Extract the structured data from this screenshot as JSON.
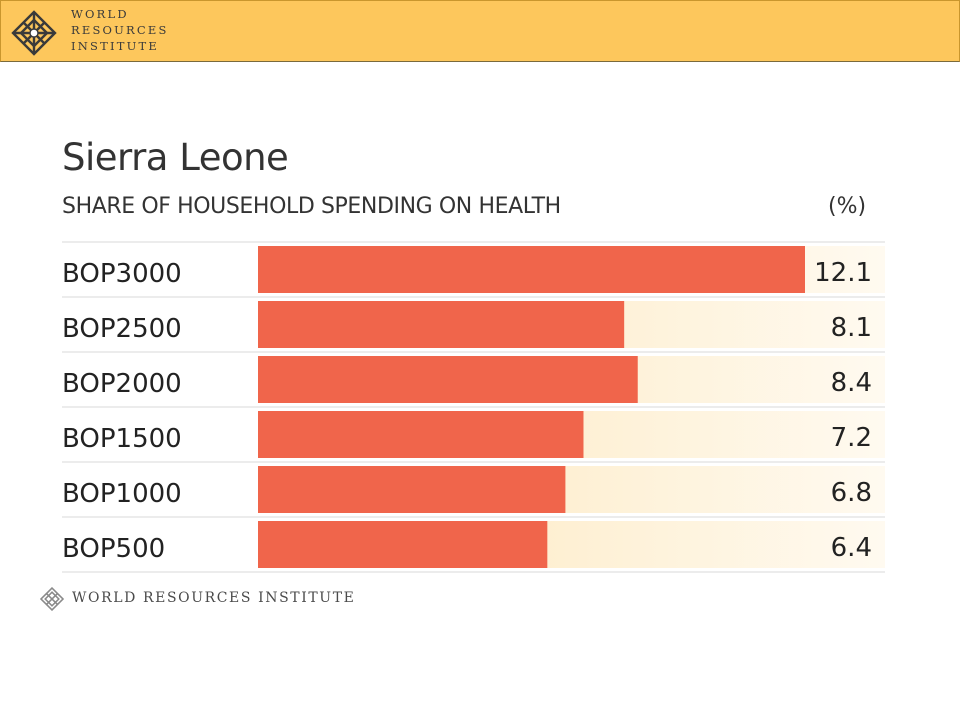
{
  "header": {
    "org_line1": "WORLD",
    "org_line2": "RESOURCES",
    "org_line3": "INSTITUTE",
    "logo_icon": "wri-knot-icon"
  },
  "footer": {
    "org_name": "WORLD RESOURCES INSTITUTE",
    "logo_icon": "wri-knot-icon"
  },
  "colors": {
    "banner": "#fdc75c",
    "bar": "#f0654b",
    "track_start": "#fde6b8",
    "track_end": "#fffaf0"
  },
  "chart_data": {
    "type": "bar",
    "orientation": "horizontal",
    "title": "Sierra Leone",
    "subtitle": "SHARE OF HOUSEHOLD SPENDING ON HEALTH",
    "unit": "(%)",
    "categories": [
      "BOP3000",
      "BOP2500",
      "BOP2000",
      "BOP1500",
      "BOP1000",
      "BOP500"
    ],
    "values": [
      12.1,
      8.1,
      8.4,
      7.2,
      6.8,
      6.4
    ],
    "value_labels": [
      "12.1",
      "8.1",
      "8.4",
      "7.2",
      "6.8",
      "6.4"
    ],
    "xlim": [
      0,
      12.1
    ],
    "grid": false,
    "legend": "none"
  }
}
